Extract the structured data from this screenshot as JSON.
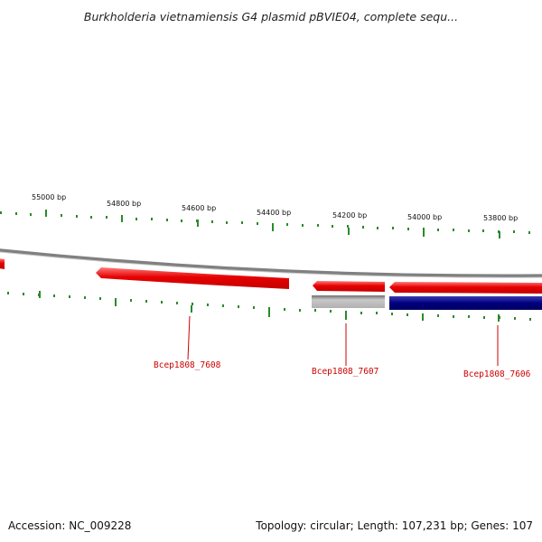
{
  "title": "Burkholderia vietnamiensis G4 plasmid pBVIE04, complete sequ...",
  "accession": "Accession: NC_009228",
  "summary": "Topology: circular; Length: 107,231 bp; Genes: 107",
  "colors": {
    "backbone": "#808080",
    "forward_gene": "#e60000",
    "reverse_gene": "#000080",
    "grey_feature": "#b0b0b0",
    "tick": "#2a8a2a",
    "gene_label": "#cc0000"
  },
  "scale": {
    "labels": [
      "55000 bp",
      "54800 bp",
      "54600 bp",
      "54400 bp",
      "54200 bp",
      "54000 bp",
      "53800 bp"
    ]
  },
  "genes": [
    {
      "name": "Bcep1808_7608"
    },
    {
      "name": "Bcep1808_7607"
    },
    {
      "name": "Bcep1808_7606"
    }
  ]
}
